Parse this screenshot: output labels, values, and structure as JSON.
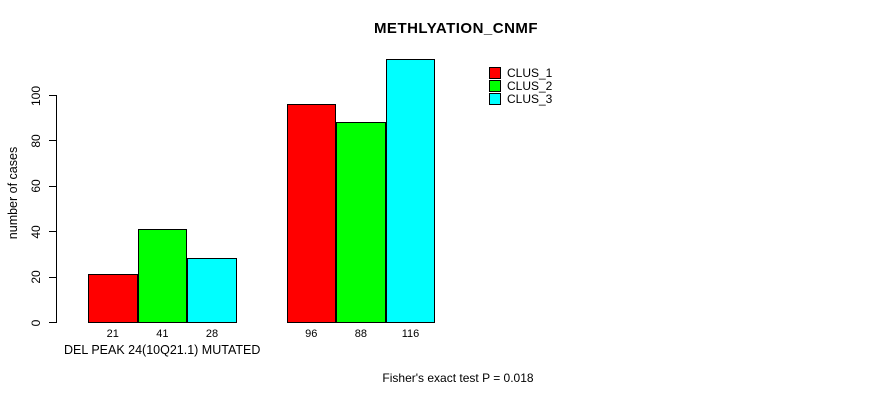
{
  "chart_data": {
    "type": "bar",
    "title": "METHLYATION_CNMF",
    "ylabel": "number of cases",
    "xlabel": "DEL PEAK 24(10Q21.1) MUTATED",
    "annotation": "Fisher's exact test P = 0.018",
    "yticks": [
      0,
      20,
      40,
      60,
      80,
      100
    ],
    "ylim": [
      0,
      116
    ],
    "grid": false,
    "legend_position": "top-right",
    "num_groups": 2,
    "series": [
      {
        "name": "CLUS_1",
        "color": "#FF0000",
        "values": [
          21,
          96
        ]
      },
      {
        "name": "CLUS_2",
        "color": "#00FF00",
        "values": [
          41,
          88
        ]
      },
      {
        "name": "CLUS_3",
        "color": "#00FFFF",
        "values": [
          28,
          116
        ]
      }
    ],
    "bar_value_labels": [
      21,
      41,
      28,
      96,
      88,
      116
    ]
  }
}
